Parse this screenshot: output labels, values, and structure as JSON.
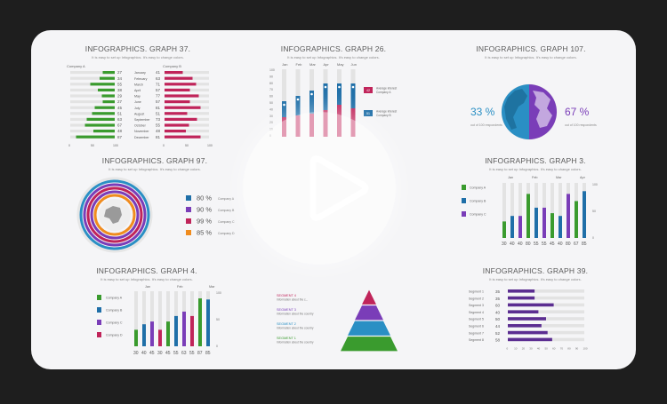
{
  "player": {
    "icon": "play-icon"
  },
  "panels": {
    "p37": {
      "title": "INFOGRAPHICS. GRAPH 37.",
      "subtitle": "It is easy to set up Infographics. It's easy to change colors.",
      "left_series": "Company A",
      "right_series": "Company B",
      "months": [
        "January",
        "February",
        "March",
        "April",
        "May",
        "June",
        "July",
        "August",
        "September",
        "October",
        "November",
        "December"
      ],
      "left_values": [
        27,
        34,
        55,
        38,
        29,
        27,
        45,
        51,
        63,
        67,
        48,
        87
      ],
      "right_values": [
        41,
        63,
        71,
        57,
        77,
        57,
        81,
        51,
        73,
        55,
        48,
        81
      ],
      "left_axis": [
        "0",
        "50",
        "100"
      ],
      "right_axis": [
        "0",
        "50",
        "100"
      ],
      "colors": {
        "left": "#3a9b2e",
        "right": "#c0245a"
      }
    },
    "p26": {
      "title": "INFOGRAPHICS. GRAPH 26.",
      "subtitle": "It is easy to set up Infographics. It's easy to change colors.",
      "months": [
        "Jan",
        "Feb",
        "Mar",
        "Apr",
        "May",
        "Jun"
      ],
      "y_ticks": [
        "100",
        "90",
        "80",
        "70",
        "60",
        "50",
        "40",
        "30",
        "20",
        "10",
        "0"
      ],
      "legend": [
        {
          "value": "42",
          "label": "Average interest Company A",
          "color": "#c0245a"
        },
        {
          "value": "51",
          "label": "Average interest Company B",
          "color": "#1f6fa8"
        }
      ]
    },
    "p107": {
      "title": "INFOGRAPHICS. GRAPH 107.",
      "subtitle": "It is easy to set up Infographics. It's easy to change colors.",
      "left_pct": "33 %",
      "left_caption": "out of 100 respondents",
      "right_pct": "67 %",
      "right_caption": "out of 100 respondents",
      "colors": {
        "left": "#2a8fc4",
        "right": "#7a3db8"
      }
    },
    "p97": {
      "title": "INFOGRAPHICS. GRAPH 97.",
      "subtitle": "It is easy to set up Infographics. It's easy to change colors.",
      "items": [
        {
          "pct": "80 %",
          "label": "Company A",
          "color": "#1f6fa8"
        },
        {
          "pct": "90 %",
          "label": "Company B",
          "color": "#7a3db8"
        },
        {
          "pct": "99 %",
          "label": "Company C",
          "color": "#c0245a"
        },
        {
          "pct": "85 %",
          "label": "Company D",
          "color": "#f08c1e"
        }
      ]
    },
    "p3": {
      "title": "INFOGRAPHICS. GRAPH 3.",
      "subtitle": "It is easy to set up Infographics. It's easy to change colors.",
      "legend": [
        {
          "label": "Company A",
          "color": "#3a9b2e"
        },
        {
          "label": "Company B",
          "color": "#1f6fa8"
        },
        {
          "label": "Company C",
          "color": "#7a3db8"
        }
      ],
      "months": [
        "Jan",
        "Feb",
        "Mar",
        "Apr"
      ],
      "values": [
        "30",
        "40",
        "40",
        "80",
        "55",
        "55",
        "45",
        "40",
        "80",
        "67",
        "85"
      ],
      "y_ticks": [
        "100",
        "50",
        "0"
      ]
    },
    "p4": {
      "title": "INFOGRAPHICS. GRAPH 4.",
      "subtitle": "It is easy to set up Infographics. It's easy to change colors.",
      "legend": [
        {
          "label": "Company A",
          "color": "#3a9b2e"
        },
        {
          "label": "Company B",
          "color": "#1f6fa8"
        },
        {
          "label": "Company C",
          "color": "#7a3db8"
        },
        {
          "label": "Company D",
          "color": "#c0245a"
        }
      ],
      "months": [
        "Jan",
        "Feb",
        "Mar"
      ],
      "values": [
        "30",
        "40",
        "45",
        "30",
        "45",
        "55",
        "63",
        "55",
        "87",
        "85"
      ],
      "y_ticks": [
        "100",
        "50",
        "0"
      ]
    },
    "pyramid": {
      "segments": [
        {
          "name": "SEGMENT 4",
          "desc": "Information about the c...",
          "color": "#c0245a"
        },
        {
          "name": "SEGMENT 3",
          "desc": "Information about the country",
          "color": "#7a3db8"
        },
        {
          "name": "SEGMENT 2",
          "desc": "Information about the country",
          "color": "#2a8fc4"
        },
        {
          "name": "SEGMENT 1",
          "desc": "Information about the country",
          "color": "#3a9b2e"
        }
      ]
    },
    "p39": {
      "title": "INFOGRAPHICS. GRAPH 39.",
      "subtitle": "It is easy to set up Infographics. It's easy to change colors.",
      "rows": [
        {
          "label": "Segment 1",
          "value": 35
        },
        {
          "label": "Segment 2",
          "value": 35
        },
        {
          "label": "Segment 3",
          "value": 60
        },
        {
          "label": "Segment 4",
          "value": 40
        },
        {
          "label": "Segment 5",
          "value": 50
        },
        {
          "label": "Segment 6",
          "value": 44
        },
        {
          "label": "Segment 7",
          "value": 52
        },
        {
          "label": "Segment 8",
          "value": 58
        }
      ],
      "x_ticks": [
        "0",
        "10",
        "20",
        "30",
        "40",
        "50",
        "60",
        "70",
        "80",
        "90",
        "100"
      ],
      "color": "#5b2d91"
    }
  }
}
